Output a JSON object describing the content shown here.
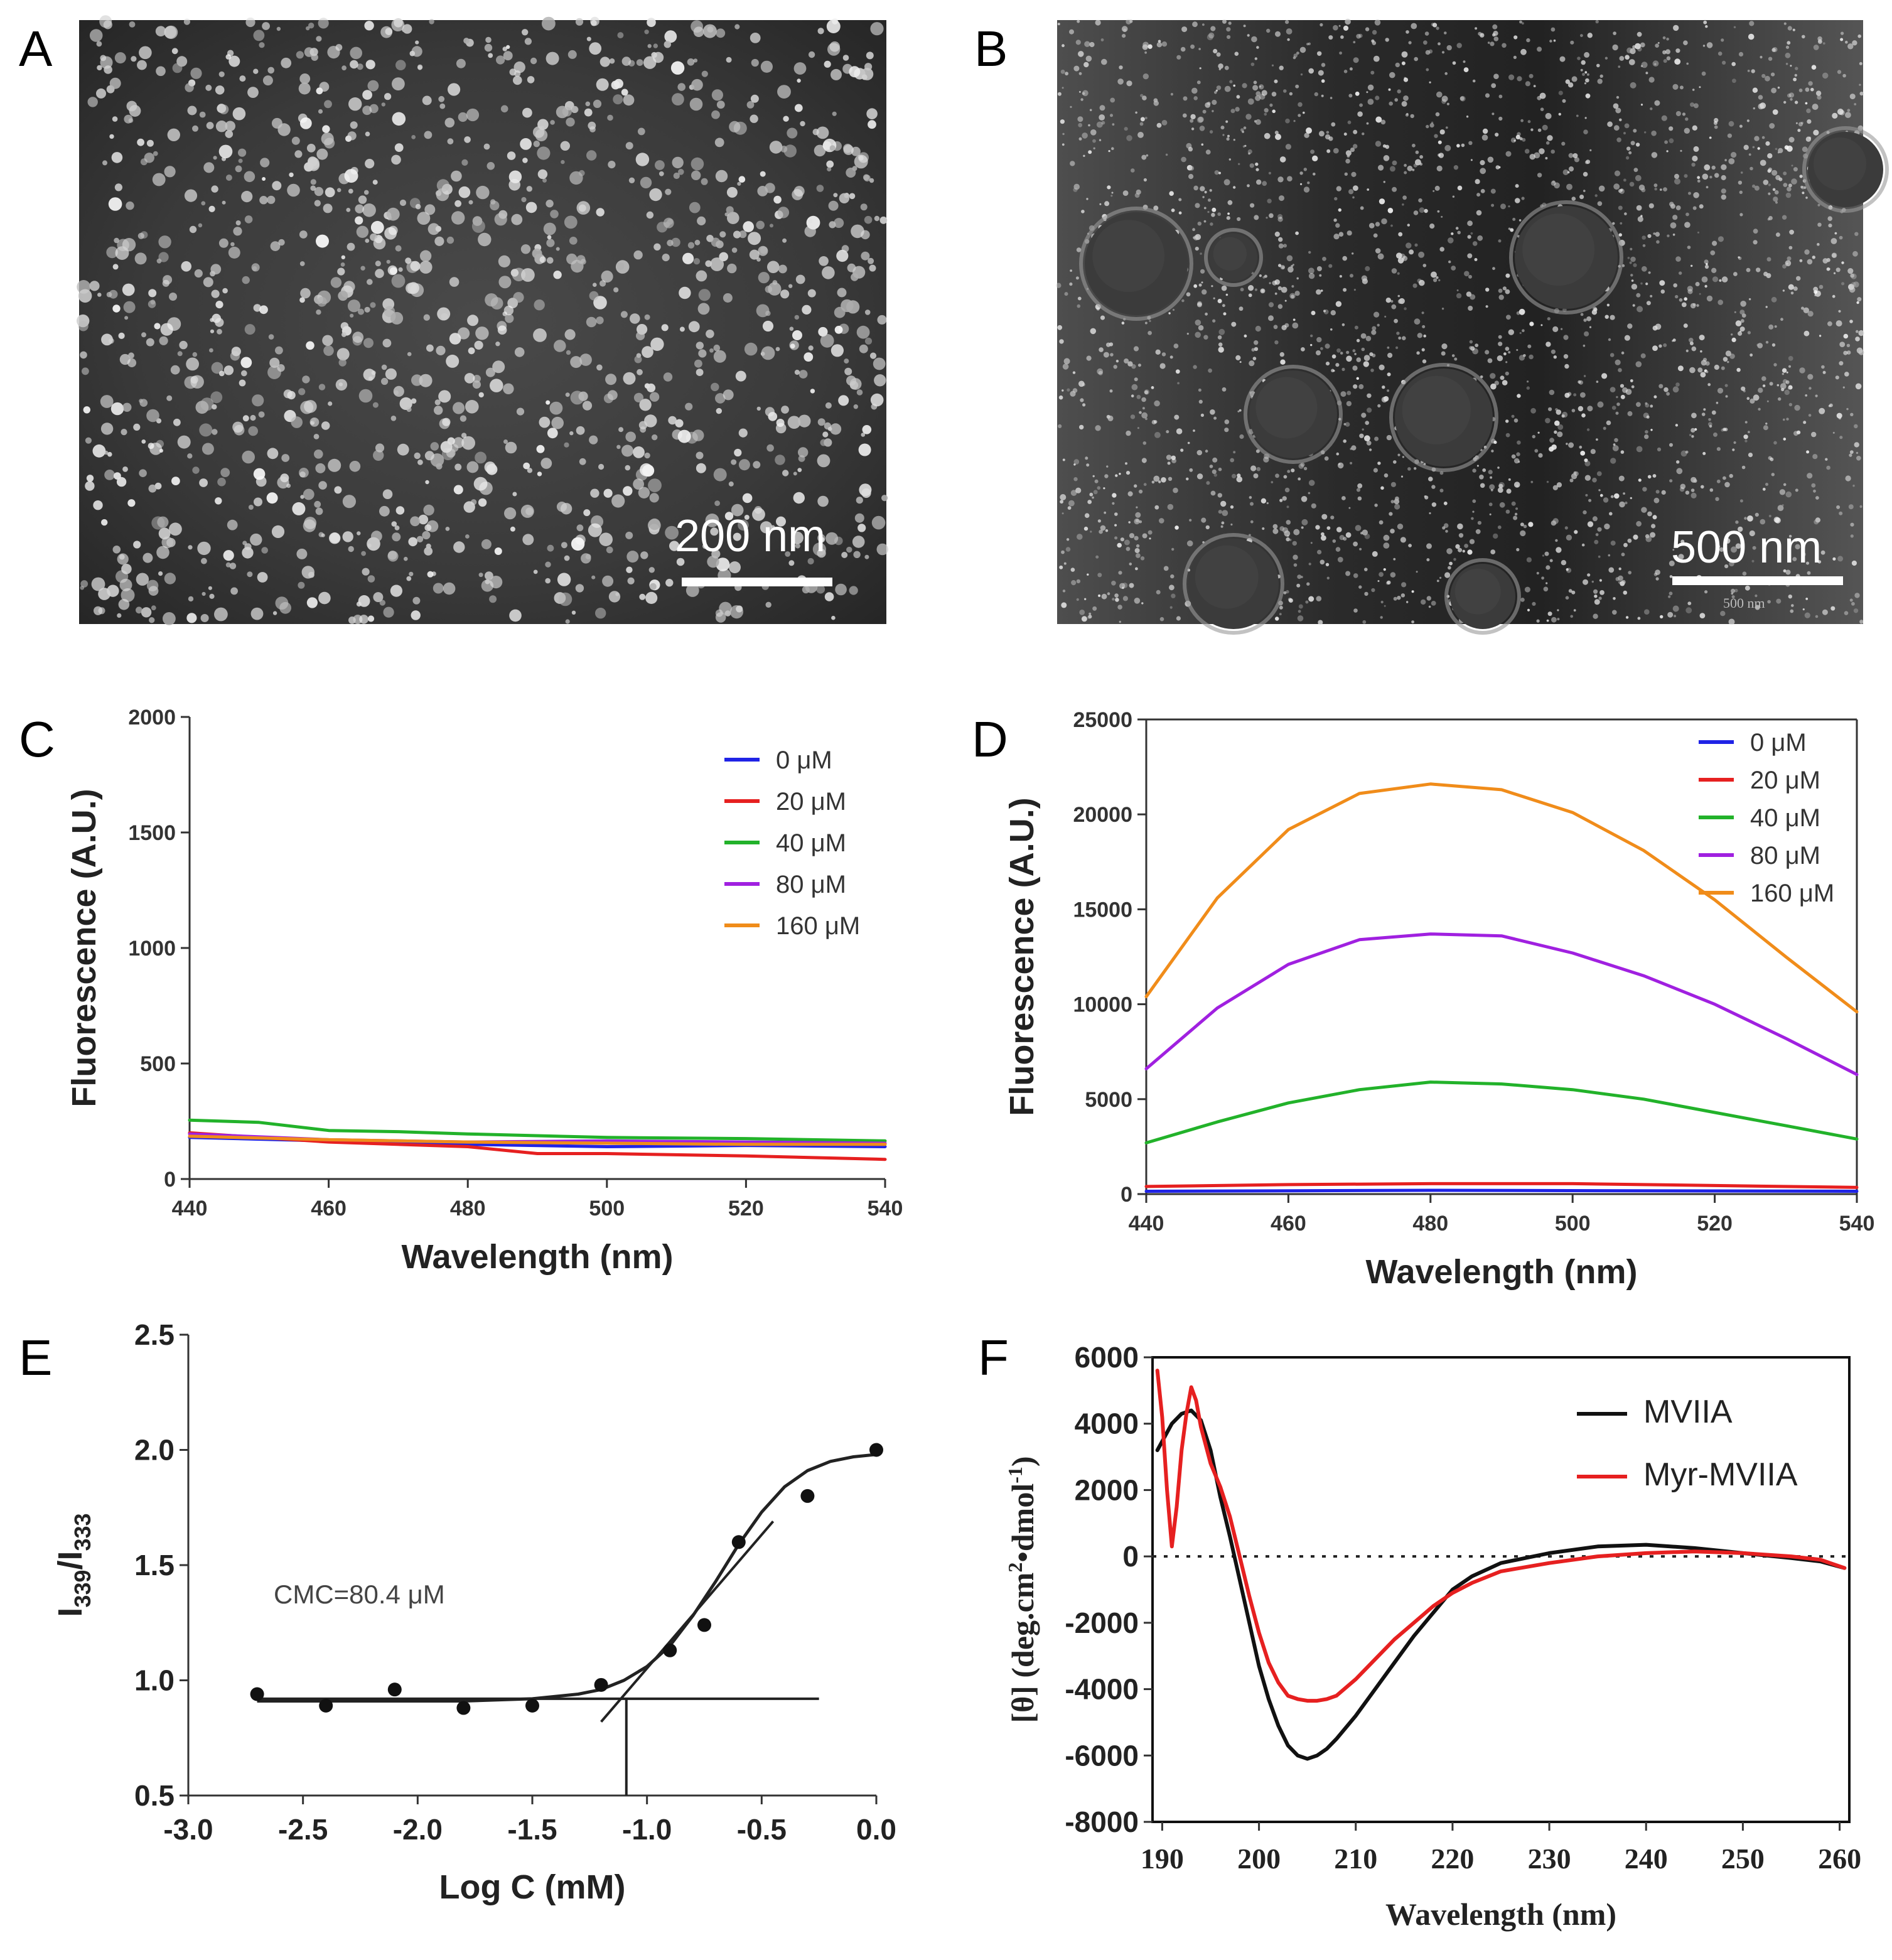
{
  "panels": {
    "A": {
      "letter": "A",
      "scale_bar": "200 nm"
    },
    "B": {
      "letter": "B",
      "scale_bar": "500 nm",
      "scale_bar_small": "500 nm"
    },
    "C": {
      "letter": "C"
    },
    "D": {
      "letter": "D"
    },
    "E": {
      "letter": "E",
      "annotation": "CMC=80.4 μM"
    },
    "F": {
      "letter": "F"
    }
  },
  "chart_data": [
    {
      "id": "C",
      "type": "line",
      "xlabel": "Wavelength (nm)",
      "ylabel": "Fluorescence (A.U.)",
      "xlim": [
        440,
        540
      ],
      "ylim": [
        0,
        2000
      ],
      "xticks": [
        440,
        460,
        480,
        500,
        520,
        540
      ],
      "yticks": [
        0,
        500,
        1000,
        1500,
        2000
      ],
      "legend_position": "top-right",
      "series": [
        {
          "name": "0 μM",
          "color": "#1f23e6",
          "x": [
            440,
            460,
            480,
            500,
            520,
            540
          ],
          "y": [
            180,
            165,
            150,
            140,
            145,
            140
          ]
        },
        {
          "name": "20 μM",
          "color": "#e62020",
          "x": [
            440,
            460,
            480,
            490,
            500,
            520,
            540
          ],
          "y": [
            200,
            160,
            140,
            110,
            110,
            100,
            85
          ]
        },
        {
          "name": "40 μM",
          "color": "#22b22a",
          "x": [
            440,
            450,
            460,
            470,
            480,
            500,
            520,
            540
          ],
          "y": [
            255,
            245,
            210,
            205,
            195,
            180,
            175,
            165
          ]
        },
        {
          "name": "80 μM",
          "color": "#a020e0",
          "x": [
            440,
            460,
            480,
            500,
            520,
            540
          ],
          "y": [
            195,
            170,
            160,
            165,
            160,
            155
          ]
        },
        {
          "name": "160 μM",
          "color": "#f08c1a",
          "x": [
            440,
            460,
            480,
            500,
            520,
            540
          ],
          "y": [
            185,
            170,
            160,
            155,
            150,
            150
          ]
        }
      ]
    },
    {
      "id": "D",
      "type": "line",
      "xlabel": "Wavelength (nm)",
      "ylabel": "Fluorescence (A.U.)",
      "xlim": [
        440,
        540
      ],
      "ylim": [
        0,
        25000
      ],
      "xticks": [
        440,
        460,
        480,
        500,
        520,
        540
      ],
      "yticks": [
        0,
        5000,
        10000,
        15000,
        20000,
        25000
      ],
      "legend_position": "top-right",
      "series": [
        {
          "name": "0 μM",
          "color": "#1f23e6",
          "x": [
            440,
            480,
            540
          ],
          "y": [
            150,
            200,
            150
          ]
        },
        {
          "name": "20 μM",
          "color": "#e62020",
          "x": [
            440,
            460,
            480,
            500,
            520,
            540
          ],
          "y": [
            400,
            500,
            550,
            550,
            450,
            350
          ]
        },
        {
          "name": "40 μM",
          "color": "#22b22a",
          "x": [
            440,
            450,
            460,
            470,
            480,
            490,
            500,
            510,
            520,
            530,
            540
          ],
          "y": [
            2700,
            3800,
            4800,
            5500,
            5900,
            5800,
            5500,
            5000,
            4300,
            3600,
            2900
          ]
        },
        {
          "name": "80 μM",
          "color": "#a020e0",
          "x": [
            440,
            450,
            460,
            470,
            480,
            490,
            500,
            510,
            520,
            530,
            540
          ],
          "y": [
            6600,
            9800,
            12100,
            13400,
            13700,
            13600,
            12700,
            11500,
            10000,
            8200,
            6300
          ]
        },
        {
          "name": "160 μM",
          "color": "#f08c1a",
          "x": [
            440,
            450,
            460,
            470,
            480,
            490,
            500,
            510,
            520,
            530,
            540
          ],
          "y": [
            10400,
            15600,
            19200,
            21100,
            21600,
            21300,
            20100,
            18100,
            15500,
            12500,
            9600
          ]
        }
      ]
    },
    {
      "id": "E",
      "type": "scatter",
      "xlabel": "Log C (mM)",
      "ylabel": "I339/I333",
      "ylabel_main": "I",
      "ylabel_sub1": "339",
      "ylabel_mid": "/I",
      "ylabel_sub2": "333",
      "xlim": [
        -3.0,
        0.0
      ],
      "ylim": [
        0.5,
        2.5
      ],
      "xticks": [
        "-3.0",
        "-2.5",
        "-2.0",
        "-1.5",
        "-1.0",
        "-0.5",
        "0.0"
      ],
      "yticks": [
        "0.5",
        "1.0",
        "1.5",
        "2.0",
        "2.5"
      ],
      "points": {
        "x": [
          -2.7,
          -2.4,
          -2.1,
          -1.8,
          -1.5,
          -1.2,
          -0.9,
          -0.75,
          -0.6,
          -0.3,
          0.0
        ],
        "y": [
          0.94,
          0.89,
          0.96,
          0.88,
          0.89,
          0.98,
          1.13,
          1.24,
          1.6,
          1.8,
          2.0
        ]
      },
      "fit_curve": {
        "x": [
          -2.7,
          -2.4,
          -2.1,
          -1.8,
          -1.5,
          -1.3,
          -1.2,
          -1.1,
          -1.0,
          -0.9,
          -0.8,
          -0.7,
          -0.6,
          -0.5,
          -0.4,
          -0.3,
          -0.2,
          -0.1,
          0.0
        ],
        "y": [
          0.91,
          0.91,
          0.91,
          0.91,
          0.92,
          0.94,
          0.96,
          1.0,
          1.06,
          1.15,
          1.28,
          1.43,
          1.59,
          1.73,
          1.84,
          1.91,
          1.95,
          1.97,
          1.98
        ]
      },
      "baseline": {
        "x": [
          -2.7,
          -0.25
        ],
        "y": [
          0.92,
          0.92
        ]
      },
      "tangent": {
        "x": [
          -1.2,
          -0.45
        ],
        "y": [
          0.82,
          1.69
        ]
      },
      "cmc_line": {
        "x": -1.09,
        "y": [
          0.5,
          0.92
        ]
      }
    },
    {
      "id": "F",
      "type": "line",
      "xlabel": "Wavelength (nm)",
      "ylabel_prefix": "[θ] (deg.cm",
      "ylabel_sup1": "2",
      "ylabel_mid": "•dmol",
      "ylabel_sup2": "-1",
      "ylabel_suffix": ")",
      "xlim": [
        189,
        261
      ],
      "ylim": [
        -8000,
        6000
      ],
      "xticks": [
        190,
        200,
        210,
        220,
        230,
        240,
        250,
        260
      ],
      "yticks": [
        -8000,
        -6000,
        -4000,
        -2000,
        0,
        2000,
        4000,
        6000
      ],
      "zero_line": "dotted",
      "legend_position": "top-right",
      "series": [
        {
          "name": "MVIIA",
          "color": "#111111",
          "x": [
            189.5,
            191,
            192,
            193,
            194,
            195,
            196,
            197,
            198,
            199,
            200,
            201,
            202,
            203,
            204,
            205,
            206,
            207,
            208,
            210,
            212,
            214,
            216,
            218,
            220,
            222,
            225,
            230,
            235,
            240,
            245,
            250,
            255,
            258,
            260.5
          ],
          "y": [
            3200,
            4000,
            4300,
            4400,
            4100,
            3200,
            1800,
            600,
            -700,
            -2000,
            -3300,
            -4300,
            -5100,
            -5700,
            -6000,
            -6100,
            -6000,
            -5800,
            -5500,
            -4800,
            -4000,
            -3200,
            -2400,
            -1700,
            -1000,
            -600,
            -200,
            100,
            300,
            350,
            250,
            100,
            -50,
            -150,
            -350
          ]
        },
        {
          "name": "Myr-MVIIA",
          "color": "#e62020",
          "x": [
            189.5,
            190,
            190.5,
            191,
            191.5,
            192,
            192.5,
            193,
            193.5,
            194,
            195,
            196,
            197,
            198,
            199,
            200,
            201,
            202,
            203,
            204,
            205,
            206,
            207,
            208,
            210,
            212,
            214,
            216,
            218,
            220,
            222,
            225,
            230,
            235,
            240,
            245,
            250,
            255,
            258,
            260.5
          ],
          "y": [
            5600,
            4200,
            2000,
            300,
            1500,
            3200,
            4300,
            5100,
            4700,
            3900,
            2800,
            2100,
            1200,
            0,
            -1200,
            -2300,
            -3200,
            -3800,
            -4200,
            -4300,
            -4350,
            -4350,
            -4300,
            -4200,
            -3700,
            -3100,
            -2500,
            -2000,
            -1500,
            -1100,
            -800,
            -450,
            -200,
            0,
            100,
            150,
            100,
            0,
            -100,
            -350
          ]
        }
      ]
    }
  ]
}
